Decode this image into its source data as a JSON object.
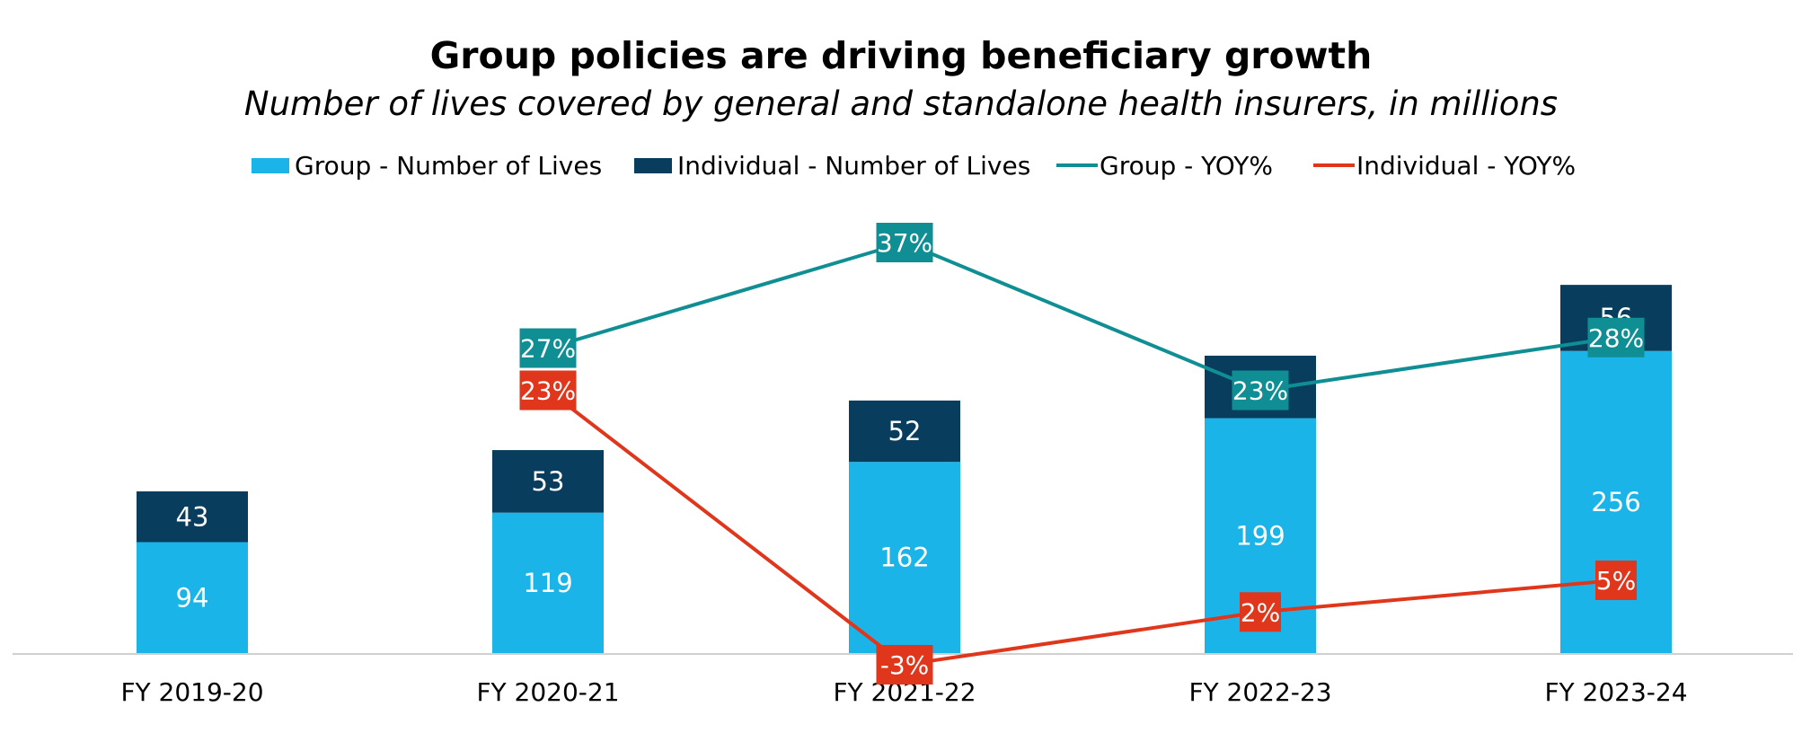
{
  "chart_data": {
    "type": "bar",
    "stacked": true,
    "title": "Group policies are driving beneficiary growth",
    "subtitle": "Number of lives covered by general and standalone health insurers, in millions",
    "categories": [
      "FY 2019-20",
      "FY 2020-21",
      "FY 2021-22",
      "FY 2022-23",
      "FY 2023-24"
    ],
    "series": [
      {
        "name": "Group - Number of Lives",
        "kind": "bar",
        "color": "#1BB4E9",
        "values": [
          94,
          119,
          162,
          199,
          256
        ],
        "labels": [
          "94",
          "119",
          "162",
          "199",
          "256"
        ]
      },
      {
        "name": "Individual - Number of Lives",
        "kind": "bar",
        "color": "#083D5E",
        "values": [
          43,
          53,
          52,
          53,
          56
        ],
        "labels": [
          "43",
          "53",
          "52",
          "53",
          "56"
        ]
      },
      {
        "name": "Group - YOY%",
        "kind": "line",
        "color": "#0F8F94",
        "values": [
          null,
          27,
          37,
          23,
          28
        ],
        "labels": [
          "",
          "27%",
          "37%",
          "23%",
          "28%"
        ]
      },
      {
        "name": "Individual - YOY%",
        "kind": "line",
        "color": "#E0361C",
        "values": [
          null,
          23,
          -3,
          2,
          5
        ],
        "labels": [
          "",
          "23%",
          "-3%",
          "2%",
          "5%"
        ]
      }
    ],
    "legend_position": "top",
    "grid": false,
    "ylim_bars": [
      0,
      325
    ],
    "ylim_lines": [
      -3,
      37
    ]
  }
}
